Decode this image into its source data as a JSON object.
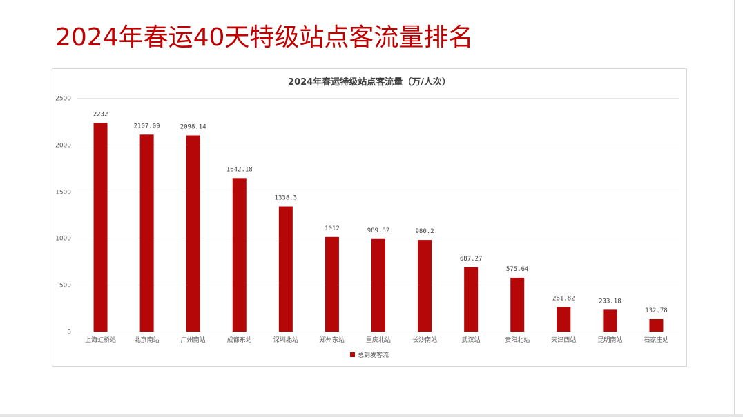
{
  "page": {
    "title": "2024年春运40天特级站点客流量排名"
  },
  "colors": {
    "title": "#c00000",
    "bar": "#b50707",
    "grid": "#e6e6e6"
  },
  "chart_data": {
    "type": "bar",
    "title": "2024年春运特级站点客流量（万/人次）",
    "xlabel": "",
    "ylabel": "",
    "ylim": [
      0,
      2500
    ],
    "yticks": [
      0,
      500,
      1000,
      1500,
      2000,
      2500
    ],
    "grid": true,
    "legend_position": "bottom",
    "categories": [
      "上海虹桥站",
      "北京南站",
      "广州南站",
      "成都东站",
      "深圳北站",
      "郑州东站",
      "重庆北站",
      "长沙南站",
      "武汉站",
      "贵阳北站",
      "天津西站",
      "昆明南站",
      "石家庄站"
    ],
    "series": [
      {
        "name": "总到发客流",
        "values": [
          2232,
          2107.09,
          2098.14,
          1642.18,
          1338.3,
          1012,
          989.82,
          980.2,
          687.27,
          575.64,
          261.82,
          233.18,
          132.78
        ],
        "labels": [
          "2232",
          "2107.09",
          "2098.14",
          "1642.18",
          "1338.3",
          "1012",
          "989.82",
          "980.2",
          "687.27",
          "575.64",
          "261.82",
          "233.18",
          "132.78"
        ]
      }
    ]
  }
}
